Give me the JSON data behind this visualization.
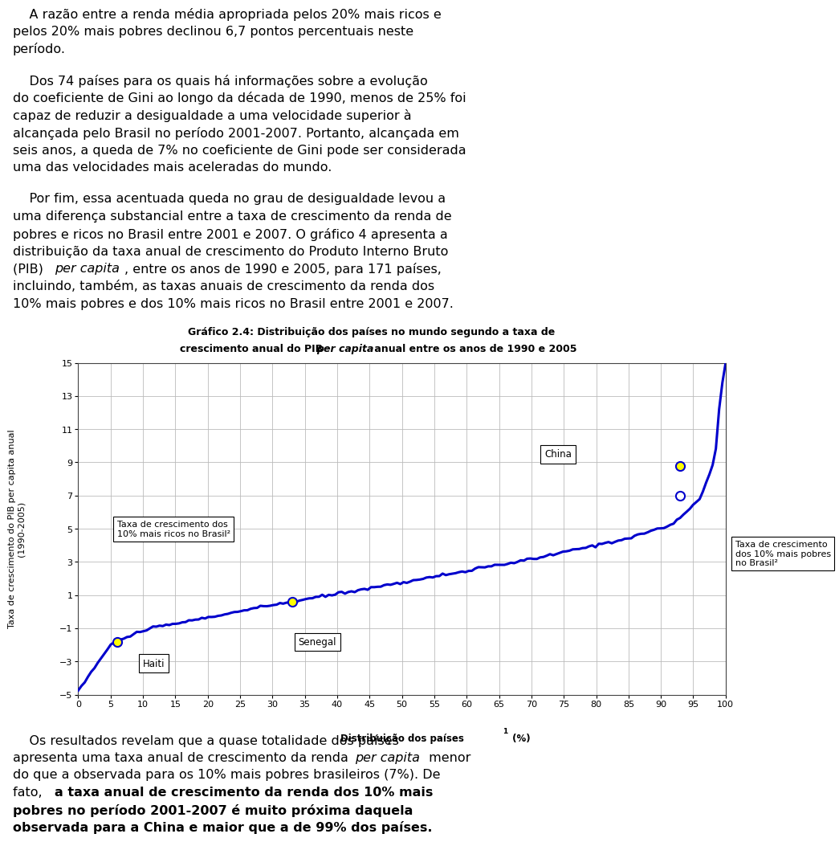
{
  "title_line1": "Gráfico 2.4: Distribuição dos países no mundo segundo a taxa de",
  "title_line2_pre": "crescimento anual do PIB ",
  "title_line2_italic": "per capita",
  "title_line2_post": " anual entre os anos de 1990 e 2005",
  "xlabel_pre": "Distribuição dos países",
  "xlabel_super": "1",
  "xlabel_post": " (%)",
  "ylabel": "Taxa de crescimento do PIB per capita anual\n(1990-2005)",
  "xlim": [
    0,
    100
  ],
  "ylim": [
    -5,
    15
  ],
  "yticks": [
    -5,
    -3,
    -1,
    1,
    3,
    5,
    7,
    9,
    11,
    13,
    15
  ],
  "xticks": [
    0,
    5,
    10,
    15,
    20,
    25,
    30,
    35,
    40,
    45,
    50,
    55,
    60,
    65,
    70,
    75,
    80,
    85,
    90,
    95,
    100
  ],
  "line_color": "#0000CC",
  "grid_color": "#BBBBBB",
  "haiti_x": 6,
  "senegal_x": 33,
  "china_x": 93,
  "china_y": 8.8,
  "brazil_rich_y": 7.0,
  "brazil_poor_y": 7.0,
  "para1_lines": [
    "    A razão entre a renda média apropriada pelos 20% mais ricos e",
    "pelos 20% mais pobres declinou 6,7 pontos percentuais neste",
    "período."
  ],
  "para2_lines": [
    "    Dos 74 países para os quais há informações sobre a evolução",
    "do coeficiente de Gini ao longo da década de 1990, menos de 25% foi",
    "capaz de reduzir a desigualdade a uma velocidade superior à",
    "alcançada pelo Brasil no período 2001-2007. Portanto, alcançada em",
    "seis anos, a queda de 7% no coeficiente de Gini pode ser considerada",
    "uma das velocidades mais aceleradas do mundo."
  ],
  "para3_lines": [
    "    Por fim, essa acentuada queda no grau de desigualdade levou a",
    "uma diferença substancial entre a taxa de crescimento da renda de",
    "pobres e ricos no Brasil entre 2001 e 2007. O gráfico 4 apresenta a",
    "distribuição da taxa anual de crescimento do Produto Interno Bruto",
    "(PIB) [italic:per capita], entre os anos de 1990 e 2005, para 171 países,",
    "incluindo, também, as taxas anuais de crescimento da renda dos",
    "10% mais pobres e dos 10% mais ricos no Brasil entre 2001 e 2007."
  ],
  "para4_lines": [
    "    Os resultados revelam que a quase totalidade dos países",
    "apresenta uma taxa anual de crescimento da renda [italic:per capita] menor",
    "do que a observada para os 10% mais pobres brasileiros (7%). De",
    "fato, [bold:a taxa anual de crescimento da renda dos 10% mais]",
    "[bold:pobres no período 2001-2007 é muito próxima daquela]",
    "[bold:observada para a China e maior que a de 99% dos países.]"
  ],
  "rich_box_text": "Taxa de crescimento dos\n10% mais ricos no Brasil²",
  "poor_box_text": "Taxa de crescimento\ndos 10% mais pobres\nno Brasil²",
  "haiti_label": "Haiti",
  "senegal_label": "Senegal",
  "china_label": "China",
  "font_size": 11.5,
  "chart_font_size": 8.5,
  "title_font_size": 9.0,
  "top_height_ratio": 0.36,
  "chart_height_ratio": 0.38,
  "bot_height_ratio": 0.26
}
